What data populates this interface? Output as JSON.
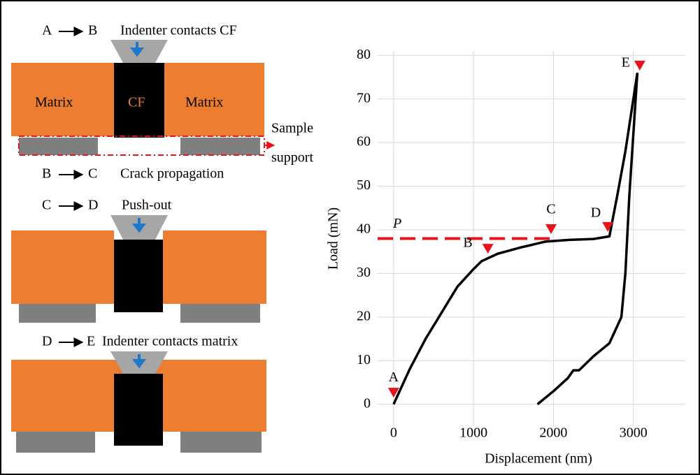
{
  "diagram": {
    "steps": [
      {
        "from": "A",
        "to": "B",
        "label": "Indenter contacts CF"
      },
      {
        "from": "B",
        "to": "C",
        "label": "Crack propagation"
      },
      {
        "from": "C",
        "to": "D",
        "label": "Push-out"
      },
      {
        "from": "D",
        "to": "E",
        "label": "Indenter contacts matrix"
      }
    ],
    "matrix_left": "Matrix",
    "fiber": "CF",
    "matrix_right": "Matrix",
    "support": [
      "Sample",
      "support"
    ]
  },
  "chart_data": {
    "type": "line",
    "xlabel": "Displacement (nm)",
    "ylabel": "Load (mN)",
    "xlim": [
      -200,
      3650
    ],
    "xticks": [
      0,
      1000,
      2000,
      3000
    ],
    "ylim": [
      -5,
      81
    ],
    "yticks": [
      0,
      10,
      20,
      30,
      40,
      50,
      60,
      70,
      80
    ],
    "grid": true,
    "series": [
      {
        "color": "#000000",
        "x": [
          0,
          200,
          400,
          600,
          800,
          1000,
          1100,
          1300,
          1600,
          1900,
          2200,
          2500,
          2700,
          2800,
          2900,
          3000,
          3050
        ],
        "values": [
          0,
          8,
          15,
          21,
          27,
          31,
          32.8,
          34.5,
          36,
          37.3,
          37.7,
          37.9,
          38.5,
          48,
          58,
          70,
          76
        ]
      },
      {
        "color": "#000000",
        "x": [
          3050,
          3000,
          2950,
          2900,
          2850,
          2700,
          2500,
          2320,
          2250,
          2180,
          2000,
          1800
        ],
        "values": [
          76,
          62,
          48,
          30,
          20,
          14,
          11,
          7.8,
          7.8,
          6,
          3,
          0
        ]
      }
    ],
    "reference_line": {
      "label": "P",
      "value": 38,
      "x": [
        -200,
        2000
      ],
      "color": "#e8141c"
    },
    "markers": [
      {
        "label": "A",
        "x": 0,
        "y": 2.5,
        "color": "#e8141c"
      },
      {
        "label": "B",
        "x": 1180,
        "y": 35.5,
        "color": "#e8141c"
      },
      {
        "label": "C",
        "x": 1970,
        "y": 40,
        "color": "#e8141c"
      },
      {
        "label": "D",
        "x": 2680,
        "y": 40.5,
        "color": "#e8141c"
      },
      {
        "label": "E",
        "x": 3080,
        "y": 77.5,
        "color": "#e8141c"
      }
    ]
  }
}
